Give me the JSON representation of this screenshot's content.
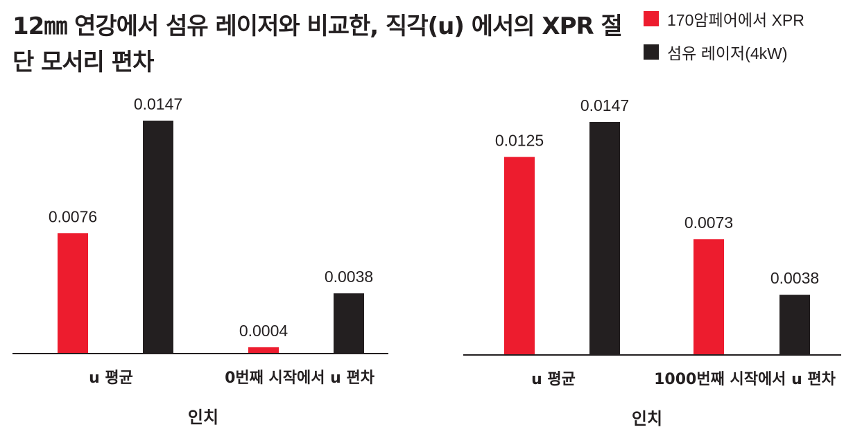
{
  "title": "12㎜ 연강에서 섬유 레이저와 비교한, 직각(u) 에서의 XPR 절단 모서리 편차",
  "legend": [
    {
      "label": "170암페어에서 XPR",
      "color": "#ed1c2e"
    },
    {
      "label": "섬유 레이저(4kW)",
      "color": "#231f20"
    }
  ],
  "chart_data": [
    {
      "type": "bar",
      "categories": [
        "u 평균",
        "0번째 시작에서 u 편차"
      ],
      "xlabel": "인치",
      "ylabel": "",
      "ylim": [
        0,
        0.0147
      ],
      "series": [
        {
          "name": "170암페어에서 XPR",
          "color": "#ed1c2e",
          "values": [
            0.0076,
            0.0004
          ],
          "labels": [
            "0.0076",
            "0.0004"
          ]
        },
        {
          "name": "섬유 레이저(4kW)",
          "color": "#231f20",
          "values": [
            0.0147,
            0.0038
          ],
          "labels": [
            "0.0147",
            "0.0038"
          ]
        }
      ]
    },
    {
      "type": "bar",
      "categories": [
        "u 평균",
        "1000번째 시작에서 u 편차"
      ],
      "xlabel": "인치",
      "ylabel": "",
      "ylim": [
        0,
        0.0147
      ],
      "series": [
        {
          "name": "170암페어에서 XPR",
          "color": "#ed1c2e",
          "values": [
            0.0125,
            0.0073
          ],
          "labels": [
            "0.0125",
            "0.0073"
          ]
        },
        {
          "name": "섬유 레이저(4kW)",
          "color": "#231f20",
          "values": [
            0.0147,
            0.0038
          ],
          "labels": [
            "0.0147",
            "0.0038"
          ]
        }
      ]
    }
  ]
}
